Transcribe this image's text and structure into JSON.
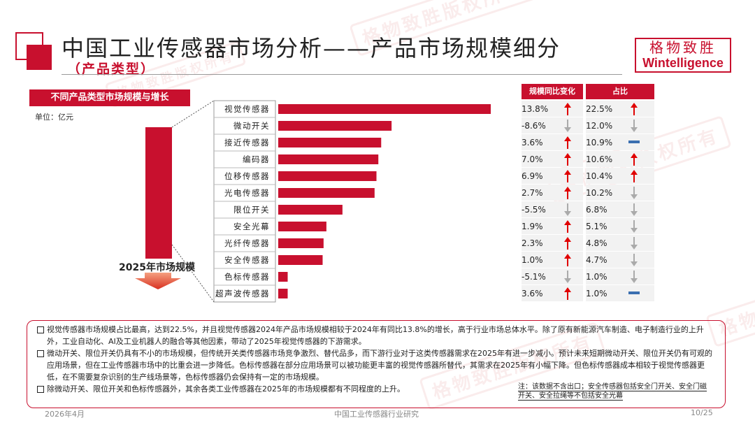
{
  "header": {
    "title": "中国工业传感器市场分析——产品市场规模细分",
    "subtitle": "（产品类型）"
  },
  "logo": {
    "cn": "格物致胜",
    "en": "Wintelligence"
  },
  "watermark_text": "格物致胜版权所有",
  "chart_data": {
    "type": "bar",
    "orientation": "horizontal",
    "title": "不同产品类型市场规模与增长",
    "unit_label": "单位：亿元",
    "total_label": "2025年市场规模",
    "categories": [
      "视觉传感器",
      "微动开关",
      "接近传感器",
      "编码器",
      "位移传感器",
      "光电传感器",
      "限位开关",
      "安全光幕",
      "光纤传感器",
      "安全传感器",
      "色标传感器",
      "超声波传感器"
    ],
    "share_pct": [
      22.5,
      12.0,
      10.9,
      10.6,
      10.4,
      10.2,
      6.8,
      5.1,
      4.8,
      4.7,
      1.0,
      1.0
    ],
    "yoy_change": [
      "13.8%",
      "-8.6%",
      "3.6%",
      "7.0%",
      "6.9%",
      "2.7%",
      "-5.5%",
      "1.9%",
      "2.3%",
      "1.0%",
      "-5.1%",
      "3.6%"
    ],
    "yoy_trend": [
      "up",
      "down",
      "up",
      "up",
      "up",
      "up",
      "down",
      "up",
      "up",
      "up",
      "down",
      "up"
    ],
    "share_text": [
      "22.5%",
      "12.0%",
      "10.9%",
      "10.6%",
      "10.4%",
      "10.2%",
      "6.8%",
      "5.1%",
      "4.8%",
      "4.7%",
      "1.0%",
      "1.0%"
    ],
    "share_trend": [
      "up",
      "down",
      "flat",
      "up",
      "up",
      "down",
      "down",
      "down",
      "down",
      "down",
      "down",
      "flat"
    ],
    "table_headers": {
      "yoy": "规模同比变化",
      "share": "占比"
    },
    "colors": {
      "bar": "#c8102e",
      "up": "#e00000",
      "down": "#aaaaaa",
      "flat": "#3a6fb0"
    }
  },
  "notes": [
    "视觉传感器市场规模占比最高，达到22.5%，并且视觉传感器2024年产品市场规模相较于2024年有同比13.8%的增长，高于行业市场总体水平。除了原有新能源汽车制造、电子制造行业的上升外，工业自动化、AI及工业机器人的融合等其他因素，带动了2025年视觉传感器的下游需求。",
    "微动开关、限位开关仍具有不小的市场规模，但传统开关类传感器市场竞争激烈、替代品多，而下游行业对于这类传感器需求在2025年有进一步减小。预计未来短期微动开关、限位开关仍有可观的应用场景，但在工业传感器市场中的比重会进一步降低。色标传感器在部分应用场景可以被功能更丰富的视觉传感器所替代，其需求在2025年有小幅下降。但色标传感器成本相较于视觉传感器更低，在不需要复杂识别的生产线场景等，色标传感器仍会保持有一定的市场规模。",
    "除微动开关、限位开关和色标传感器外，其余各类工业传感器在2025年的市场规模都有不同程度的上升。"
  ],
  "remark": "注：该数据不含出口；安全传感器包括安全门开关、安全门磁开关、安全拉绳等不包括安全光幕",
  "footer": {
    "date": "2026年4月",
    "title": "中国工业传感器行业研究",
    "page": "10/25"
  }
}
